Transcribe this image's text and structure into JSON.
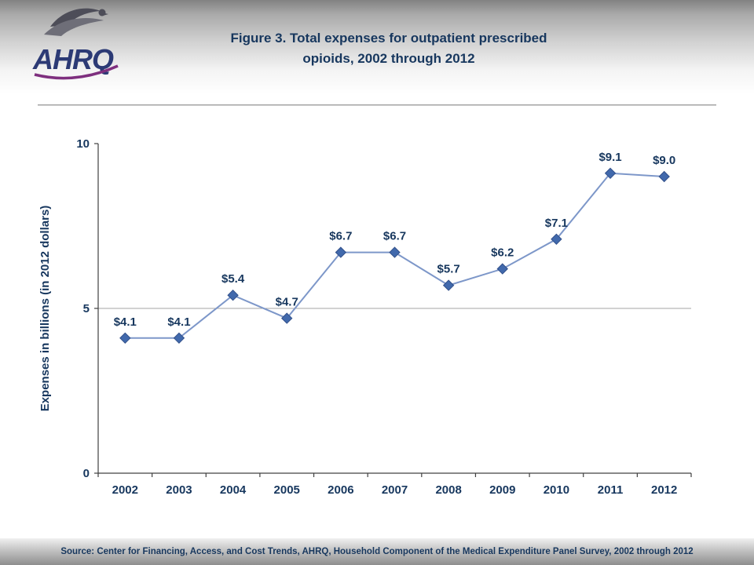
{
  "header": {
    "title_line1": "Figure 3. Total expenses for outpatient prescribed",
    "title_line2": "opioids, 2002 through 2012",
    "logo_text": "AHRQ"
  },
  "footer": {
    "source": "Source: Center for Financing, Access, and Cost Trends, AHRQ, Household Component of the Medical Expenditure Panel Survey, 2002 through 2012"
  },
  "chart_data": {
    "type": "line",
    "title": "Figure 3. Total expenses for outpatient prescribed opioids, 2002 through 2012",
    "categories": [
      "2002",
      "2003",
      "2004",
      "2005",
      "2006",
      "2007",
      "2008",
      "2009",
      "2010",
      "2011",
      "2012"
    ],
    "values": [
      4.1,
      4.1,
      5.4,
      4.7,
      6.7,
      6.7,
      5.7,
      6.2,
      7.1,
      9.1,
      9.0
    ],
    "point_labels": [
      "$4.1",
      "$4.1",
      "$5.4",
      "$4.7",
      "$6.7",
      "$6.7",
      "$5.7",
      "$6.2",
      "$7.1",
      "$9.1",
      "$9.0"
    ],
    "xlabel": "",
    "ylabel": "Expenses in billions (in 2012 dollars)",
    "ylim": [
      0,
      10
    ],
    "yticks": [
      0,
      5,
      10
    ],
    "gridline_values": [
      5
    ],
    "legend": "none",
    "marker_shape": "diamond",
    "colors": {
      "line": "#7d97c9",
      "marker": "#4169ac",
      "marker_stroke": "#32508a",
      "text": "#17375e",
      "axis": "#404040",
      "gridline": "#a6a6a6"
    }
  }
}
